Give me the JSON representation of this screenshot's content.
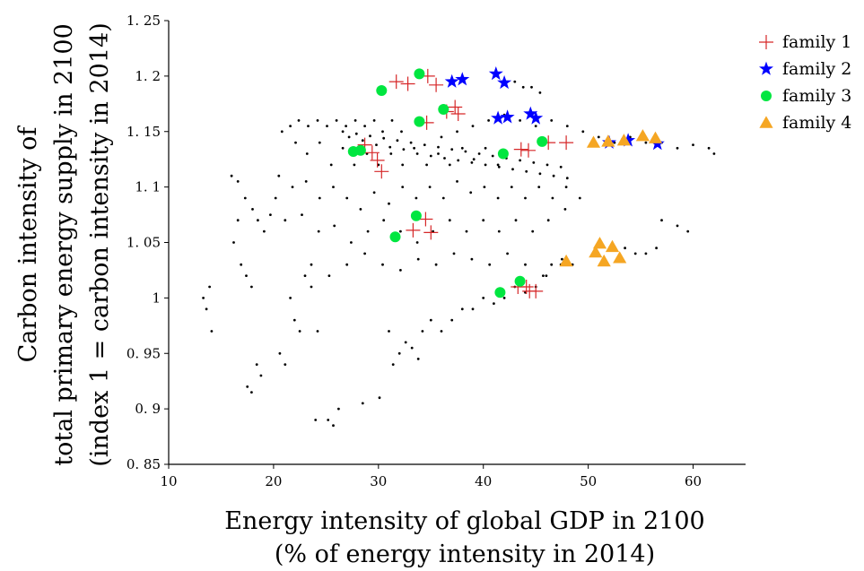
{
  "chart_data": {
    "type": "scatter",
    "xlabel_lines": [
      "Energy intensity of global GDP in 2100",
      "(% of energy intensity in 2014)"
    ],
    "ylabel_lines": [
      "Carbon intensity of",
      "total primary energy supply in 2100",
      "(index 1 = carbon intensity in 2014)"
    ],
    "xlim": [
      10,
      65
    ],
    "ylim": [
      0.85,
      1.25
    ],
    "xticks": [
      10,
      20,
      30,
      40,
      50,
      60
    ],
    "yticks": [
      0.85,
      0.9,
      0.95,
      1,
      1.05,
      1.1,
      1.15,
      1.2,
      1.25
    ],
    "xtick_labels": [
      "10",
      "20",
      "30",
      "40",
      "50",
      "60"
    ],
    "ytick_labels": [
      "0. 85",
      "0. 9",
      "0. 95",
      "1",
      "1. 05",
      "1. 1",
      "1. 15",
      "1. 2",
      "1. 25"
    ],
    "grid": false,
    "legend_position": "top-right",
    "background": {
      "color": "#000000",
      "points": [
        [
          13.3,
          1.0
        ],
        [
          13.6,
          0.99
        ],
        [
          13.9,
          1.01
        ],
        [
          14.1,
          0.97
        ],
        [
          16.2,
          1.05
        ],
        [
          16.6,
          1.07
        ],
        [
          16.9,
          1.03
        ],
        [
          17.4,
          1.02
        ],
        [
          17.9,
          1.01
        ],
        [
          16.0,
          1.11
        ],
        [
          16.6,
          1.105
        ],
        [
          17.3,
          1.09
        ],
        [
          18.0,
          1.08
        ],
        [
          18.5,
          1.07
        ],
        [
          19.1,
          1.06
        ],
        [
          19.7,
          1.075
        ],
        [
          20.2,
          1.09
        ],
        [
          17.5,
          0.92
        ],
        [
          17.9,
          0.915
        ],
        [
          18.4,
          0.94
        ],
        [
          18.8,
          0.93
        ],
        [
          20.6,
          0.95
        ],
        [
          21.1,
          0.94
        ],
        [
          22.0,
          0.98
        ],
        [
          22.5,
          0.97
        ],
        [
          21.6,
          1.0
        ],
        [
          23.0,
          1.02
        ],
        [
          23.6,
          1.01
        ],
        [
          24.2,
          0.97
        ],
        [
          24.0,
          0.89
        ],
        [
          25.2,
          0.89
        ],
        [
          25.7,
          0.885
        ],
        [
          26.2,
          0.9
        ],
        [
          28.5,
          0.905
        ],
        [
          30.1,
          0.91
        ],
        [
          20.8,
          1.15
        ],
        [
          21.6,
          1.155
        ],
        [
          22.4,
          1.16
        ],
        [
          23.3,
          1.155
        ],
        [
          24.2,
          1.16
        ],
        [
          25.1,
          1.155
        ],
        [
          26.0,
          1.16
        ],
        [
          26.9,
          1.155
        ],
        [
          27.8,
          1.16
        ],
        [
          28.7,
          1.155
        ],
        [
          29.6,
          1.16
        ],
        [
          30.4,
          1.15
        ],
        [
          31.3,
          1.16
        ],
        [
          32.2,
          1.15
        ],
        [
          22.1,
          1.14
        ],
        [
          23.2,
          1.13
        ],
        [
          24.4,
          1.14
        ],
        [
          25.5,
          1.12
        ],
        [
          26.6,
          1.135
        ],
        [
          27.7,
          1.12
        ],
        [
          28.9,
          1.13
        ],
        [
          30.0,
          1.12
        ],
        [
          31.2,
          1.13
        ],
        [
          32.3,
          1.12
        ],
        [
          33.4,
          1.135
        ],
        [
          34.6,
          1.12
        ],
        [
          35.7,
          1.13
        ],
        [
          36.8,
          1.12
        ],
        [
          38.0,
          1.135
        ],
        [
          39.1,
          1.125
        ],
        [
          40.2,
          1.135
        ],
        [
          41.4,
          1.12
        ],
        [
          20.5,
          1.11
        ],
        [
          21.8,
          1.1
        ],
        [
          23.1,
          1.105
        ],
        [
          24.4,
          1.09
        ],
        [
          25.7,
          1.1
        ],
        [
          27.0,
          1.09
        ],
        [
          28.3,
          1.08
        ],
        [
          29.6,
          1.095
        ],
        [
          31.0,
          1.085
        ],
        [
          32.3,
          1.1
        ],
        [
          33.6,
          1.09
        ],
        [
          34.9,
          1.1
        ],
        [
          36.2,
          1.09
        ],
        [
          37.5,
          1.105
        ],
        [
          38.8,
          1.095
        ],
        [
          40.1,
          1.1
        ],
        [
          41.4,
          1.09
        ],
        [
          42.7,
          1.1
        ],
        [
          44.0,
          1.09
        ],
        [
          45.3,
          1.1
        ],
        [
          46.6,
          1.09
        ],
        [
          47.9,
          1.1
        ],
        [
          49.2,
          1.09
        ],
        [
          21.1,
          1.07
        ],
        [
          22.7,
          1.075
        ],
        [
          24.3,
          1.06
        ],
        [
          25.8,
          1.065
        ],
        [
          27.4,
          1.05
        ],
        [
          29.0,
          1.06
        ],
        [
          30.5,
          1.07
        ],
        [
          32.1,
          1.06
        ],
        [
          33.7,
          1.05
        ],
        [
          35.2,
          1.06
        ],
        [
          36.8,
          1.07
        ],
        [
          38.4,
          1.06
        ],
        [
          40.0,
          1.07
        ],
        [
          41.5,
          1.06
        ],
        [
          43.1,
          1.07
        ],
        [
          44.7,
          1.06
        ],
        [
          46.2,
          1.07
        ],
        [
          47.8,
          1.08
        ],
        [
          23.6,
          1.03
        ],
        [
          25.3,
          1.02
        ],
        [
          27.0,
          1.03
        ],
        [
          28.7,
          1.04
        ],
        [
          30.4,
          1.03
        ],
        [
          32.1,
          1.025
        ],
        [
          33.8,
          1.035
        ],
        [
          35.5,
          1.03
        ],
        [
          37.2,
          1.04
        ],
        [
          38.9,
          1.035
        ],
        [
          40.6,
          1.03
        ],
        [
          42.3,
          1.04
        ],
        [
          44.0,
          1.03
        ],
        [
          45.7,
          1.02
        ],
        [
          47.4,
          1.03
        ],
        [
          31.0,
          0.97
        ],
        [
          31.4,
          0.94
        ],
        [
          32.0,
          0.95
        ],
        [
          32.6,
          0.96
        ],
        [
          33.2,
          0.955
        ],
        [
          33.8,
          0.945
        ],
        [
          34.2,
          0.97
        ],
        [
          35.0,
          0.98
        ],
        [
          36.0,
          0.97
        ],
        [
          37.0,
          0.98
        ],
        [
          38.0,
          0.99
        ],
        [
          39.0,
          0.99
        ],
        [
          40.0,
          1.0
        ],
        [
          41.0,
          0.995
        ],
        [
          42.0,
          1.0
        ],
        [
          43.0,
          1.01
        ],
        [
          44.0,
          1.005
        ],
        [
          45.0,
          1.01
        ],
        [
          46.0,
          1.02
        ],
        [
          26.6,
          1.15
        ],
        [
          27.2,
          1.145
        ],
        [
          27.9,
          1.148
        ],
        [
          28.5,
          1.142
        ],
        [
          29.2,
          1.146
        ],
        [
          29.8,
          1.138
        ],
        [
          30.5,
          1.144
        ],
        [
          31.1,
          1.136
        ],
        [
          31.8,
          1.142
        ],
        [
          32.4,
          1.134
        ],
        [
          33.1,
          1.14
        ],
        [
          33.7,
          1.13
        ],
        [
          34.4,
          1.138
        ],
        [
          35.0,
          1.128
        ],
        [
          35.7,
          1.136
        ],
        [
          36.3,
          1.126
        ],
        [
          37.0,
          1.134
        ],
        [
          37.6,
          1.124
        ],
        [
          38.3,
          1.132
        ],
        [
          38.9,
          1.122
        ],
        [
          39.6,
          1.13
        ],
        [
          40.2,
          1.12
        ],
        [
          40.9,
          1.128
        ],
        [
          41.5,
          1.118
        ],
        [
          42.2,
          1.126
        ],
        [
          42.8,
          1.116
        ],
        [
          43.5,
          1.124
        ],
        [
          44.1,
          1.114
        ],
        [
          44.8,
          1.122
        ],
        [
          45.4,
          1.112
        ],
        [
          46.1,
          1.12
        ],
        [
          46.7,
          1.11
        ],
        [
          47.4,
          1.118
        ],
        [
          48.0,
          1.108
        ],
        [
          43.0,
          1.195
        ],
        [
          43.8,
          1.19
        ],
        [
          44.6,
          1.19
        ],
        [
          45.4,
          1.185
        ],
        [
          36.0,
          1.145
        ],
        [
          37.5,
          1.15
        ],
        [
          39.0,
          1.155
        ],
        [
          40.5,
          1.16
        ],
        [
          42.0,
          1.165
        ],
        [
          43.5,
          1.16
        ],
        [
          45.0,
          1.155
        ],
        [
          46.5,
          1.16
        ],
        [
          48.0,
          1.155
        ],
        [
          49.5,
          1.15
        ],
        [
          51.0,
          1.145
        ],
        [
          52.5,
          1.14
        ],
        [
          54.0,
          1.145
        ],
        [
          55.5,
          1.14
        ],
        [
          57.0,
          1.14
        ],
        [
          58.5,
          1.135
        ],
        [
          60.0,
          1.138
        ],
        [
          61.5,
          1.135
        ],
        [
          62.0,
          1.13
        ],
        [
          50.5,
          1.14
        ],
        [
          52.0,
          1.142
        ],
        [
          53.5,
          1.14
        ],
        [
          55.0,
          1.143
        ],
        [
          56.5,
          1.137
        ],
        [
          53.5,
          1.045
        ],
        [
          54.5,
          1.04
        ],
        [
          55.5,
          1.04
        ],
        [
          57.0,
          1.07
        ],
        [
          58.5,
          1.065
        ],
        [
          59.5,
          1.06
        ],
        [
          56.5,
          1.045
        ],
        [
          46.5,
          1.03
        ],
        [
          47.5,
          1.035
        ],
        [
          48.5,
          1.03
        ]
      ]
    },
    "series": [
      {
        "name": "family 1",
        "marker": "plus",
        "color": "#d62728",
        "points": [
          [
            31.7,
            1.195
          ],
          [
            32.8,
            1.193
          ],
          [
            34.7,
            1.2
          ],
          [
            35.5,
            1.192
          ],
          [
            36.5,
            1.168
          ],
          [
            37.3,
            1.172
          ],
          [
            37.6,
            1.166
          ],
          [
            34.6,
            1.158
          ],
          [
            28.7,
            1.138
          ],
          [
            29.4,
            1.131
          ],
          [
            29.9,
            1.124
          ],
          [
            30.3,
            1.114
          ],
          [
            33.3,
            1.061
          ],
          [
            34.5,
            1.071
          ],
          [
            35.0,
            1.059
          ],
          [
            43.6,
            1.134
          ],
          [
            44.3,
            1.133
          ],
          [
            46.2,
            1.14
          ],
          [
            47.9,
            1.14
          ],
          [
            43.3,
            1.01
          ],
          [
            44.1,
            1.01
          ],
          [
            44.4,
            1.006
          ],
          [
            45.0,
            1.006
          ]
        ]
      },
      {
        "name": "family 2",
        "marker": "star",
        "color": "#0000ff",
        "points": [
          [
            37.0,
            1.195
          ],
          [
            38.0,
            1.197
          ],
          [
            41.2,
            1.202
          ],
          [
            42.0,
            1.194
          ],
          [
            41.4,
            1.162
          ],
          [
            42.3,
            1.163
          ],
          [
            44.5,
            1.166
          ],
          [
            45.0,
            1.162
          ],
          [
            52.0,
            1.14
          ],
          [
            53.8,
            1.142
          ],
          [
            56.6,
            1.139
          ]
        ]
      },
      {
        "name": "family 3",
        "marker": "circle",
        "color": "#00e640",
        "points": [
          [
            30.3,
            1.187
          ],
          [
            33.9,
            1.202
          ],
          [
            33.9,
            1.159
          ],
          [
            36.2,
            1.17
          ],
          [
            27.6,
            1.132
          ],
          [
            28.3,
            1.133
          ],
          [
            41.9,
            1.13
          ],
          [
            45.6,
            1.141
          ],
          [
            33.6,
            1.074
          ],
          [
            31.6,
            1.055
          ],
          [
            43.5,
            1.015
          ],
          [
            41.6,
            1.005
          ]
        ]
      },
      {
        "name": "family 4",
        "marker": "triangle",
        "color": "#f5a623",
        "points": [
          [
            50.5,
            1.14
          ],
          [
            51.9,
            1.141
          ],
          [
            53.4,
            1.142
          ],
          [
            55.2,
            1.146
          ],
          [
            56.4,
            1.144
          ],
          [
            51.1,
            1.049
          ],
          [
            50.7,
            1.041
          ],
          [
            51.5,
            1.033
          ],
          [
            52.3,
            1.046
          ],
          [
            53.0,
            1.036
          ],
          [
            47.9,
            1.033
          ]
        ]
      }
    ]
  }
}
